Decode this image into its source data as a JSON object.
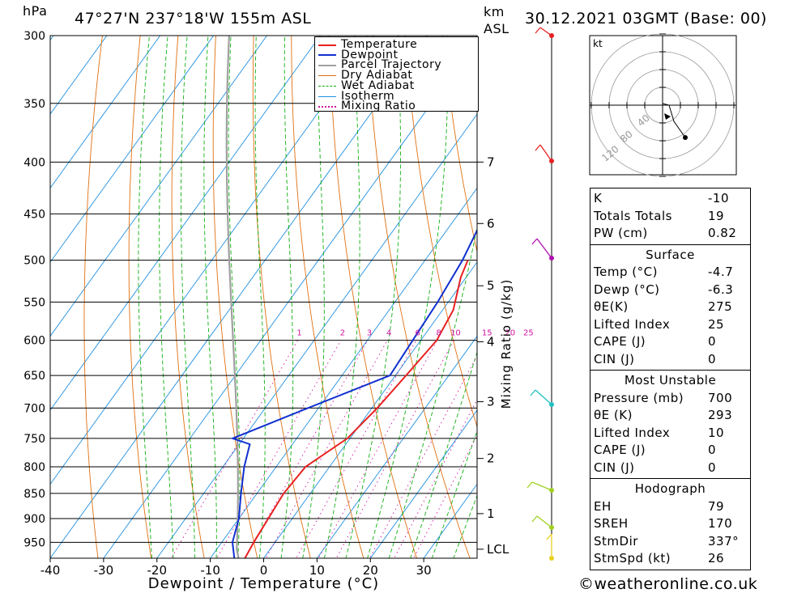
{
  "header": {
    "pressure_unit": "hPa",
    "location": "47°27'N  237°18'W  155m  ASL",
    "height_unit_line1": "km",
    "height_unit_line2": "ASL",
    "datetime": "30.12.2021  03GMT  (Base: 00)"
  },
  "chart_data": {
    "type": "line",
    "title": "47°27'N 237°18'W 155m ASL",
    "xlabel": "Dewpoint / Temperature (°C)",
    "ylabel": "hPa",
    "x_ticks": [
      -40,
      -30,
      -20,
      -10,
      0,
      10,
      20,
      30
    ],
    "y_ticks": [
      300,
      350,
      400,
      450,
      500,
      550,
      600,
      650,
      700,
      750,
      800,
      850,
      900,
      950
    ],
    "ylim": [
      985,
      300
    ],
    "xlim": [
      -40,
      40
    ],
    "y_scale": "log",
    "km_ticks": [
      {
        "label": "7",
        "pressure": 400
      },
      {
        "label": "6",
        "pressure": 460
      },
      {
        "label": "5",
        "pressure": 530
      },
      {
        "label": "4",
        "pressure": 602
      },
      {
        "label": "3",
        "pressure": 690
      },
      {
        "label": "2",
        "pressure": 785
      },
      {
        "label": "1",
        "pressure": 890
      },
      {
        "label": "LCL",
        "pressure": 965
      }
    ],
    "mixing_ratio_axis_label": "Mixing Ratio (g/kg)",
    "mixing_ratio_labels": [
      "1",
      "2",
      "3",
      "4",
      "6",
      "8",
      "10",
      "15",
      "20",
      "25"
    ],
    "mixing_ratio_values": [
      1,
      2,
      3,
      4,
      6,
      8,
      10,
      15,
      20,
      25
    ],
    "series": [
      {
        "name": "Temperature",
        "color": "#e82020",
        "points": [
          [
            -3.5,
            985
          ],
          [
            -4,
            950
          ],
          [
            -4.5,
            900
          ],
          [
            -5,
            850
          ],
          [
            -4.5,
            800
          ],
          [
            -0.5,
            750
          ],
          [
            1,
            700
          ],
          [
            2,
            650
          ],
          [
            3,
            600
          ],
          [
            2,
            560
          ],
          [
            -1,
            520
          ],
          [
            -2,
            500
          ]
        ]
      },
      {
        "name": "Dewpoint",
        "color": "#1030d0",
        "points": [
          [
            -5.5,
            985
          ],
          [
            -8,
            950
          ],
          [
            -10,
            900
          ],
          [
            -13,
            850
          ],
          [
            -16,
            800
          ],
          [
            -18,
            760
          ],
          [
            -22,
            750
          ],
          [
            -12,
            700
          ],
          [
            -1,
            650
          ],
          [
            -1.5,
            600
          ],
          [
            -2,
            550
          ],
          [
            -3,
            500
          ],
          [
            -5,
            450
          ],
          [
            -8,
            400
          ],
          [
            -13,
            350
          ],
          [
            -18,
            300
          ]
        ]
      },
      {
        "name": "Parcel Trajectory",
        "color": "#a0a0a0"
      },
      {
        "name": "Dry Adiabat",
        "color": "#e07010"
      },
      {
        "name": "Wet Adiabat",
        "color": "#10b010"
      },
      {
        "name": "Isotherm",
        "color": "#2090e0"
      },
      {
        "name": "Mixing Ratio",
        "color": "#d010a0"
      }
    ],
    "wind_barbs_pressure": [
      985,
      925,
      850,
      700,
      500,
      400,
      300
    ]
  },
  "hodograph": {
    "unit": "kt",
    "ring_labels": [
      "40",
      "80",
      "120"
    ]
  },
  "indices": {
    "general": [
      {
        "label": "K",
        "value": "-10"
      },
      {
        "label": "Totals Totals",
        "value": "19"
      },
      {
        "label": "PW (cm)",
        "value": "0.82"
      }
    ],
    "surface_title": "Surface",
    "surface": [
      {
        "label": "Temp (°C)",
        "value": "-4.7"
      },
      {
        "label": "Dewp (°C)",
        "value": "-6.3"
      },
      {
        "label": "θE(K)",
        "value": "275"
      },
      {
        "label": "Lifted Index",
        "value": "25"
      },
      {
        "label": "CAPE (J)",
        "value": "0"
      },
      {
        "label": "CIN (J)",
        "value": "0"
      }
    ],
    "most_unstable_title": "Most Unstable",
    "most_unstable": [
      {
        "label": "Pressure (mb)",
        "value": "700"
      },
      {
        "label": "θE (K)",
        "value": "293"
      },
      {
        "label": "Lifted Index",
        "value": "10"
      },
      {
        "label": "CAPE (J)",
        "value": "0"
      },
      {
        "label": "CIN (J)",
        "value": "0"
      }
    ],
    "hodograph_title": "Hodograph",
    "hodograph": [
      {
        "label": "EH",
        "value": "79"
      },
      {
        "label": "SREH",
        "value": "170"
      },
      {
        "label": "StmDir",
        "value": "337°"
      },
      {
        "label": "StmSpd (kt)",
        "value": "26"
      }
    ]
  },
  "footer": {
    "copyright": "©weatheronline.co.uk"
  }
}
